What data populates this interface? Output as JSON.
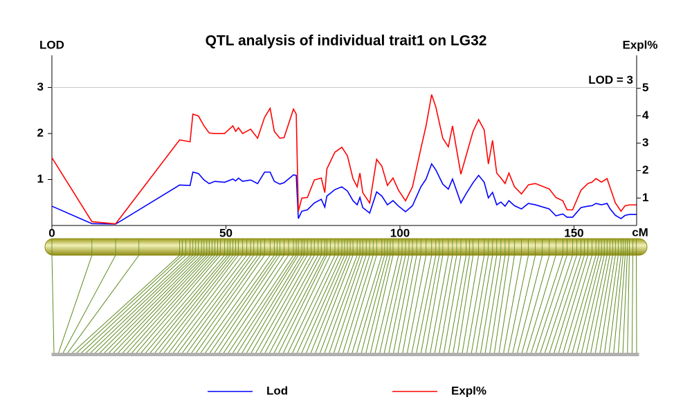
{
  "chart_data": {
    "type": "line",
    "title": "QTL analysis of individual trait1 on LG32",
    "y_label": "LOD",
    "y2_label": "Expl%",
    "x_label": "cM",
    "xlim": [
      0,
      168
    ],
    "xticks": [
      0,
      50,
      100,
      150
    ],
    "ylim": [
      0,
      3.7
    ],
    "yticks": [
      1,
      2,
      3
    ],
    "y2lim": [
      0,
      6.2
    ],
    "y2ticks": [
      1,
      2,
      3,
      4,
      5
    ],
    "threshold": {
      "value": 3,
      "label": "LOD = 3",
      "color": "#c8c8c8"
    },
    "x": [
      0,
      11.5,
      18.3,
      36.7,
      39.7,
      40.5,
      42.1,
      43.7,
      45.2,
      46.8,
      49.6,
      52.0,
      52.8,
      53.6,
      54.8,
      57.1,
      59.1,
      61.1,
      62.7,
      63.9,
      65.5,
      66.7,
      69.4,
      70.2,
      70.8,
      71.8,
      73.4,
      75.4,
      77.4,
      78.4,
      79.0,
      81.3,
      83.3,
      84.9,
      86.5,
      87.7,
      88.5,
      89.3,
      91.3,
      93.3,
      94.8,
      96.4,
      98.0,
      99.6,
      101.6,
      103.6,
      106.0,
      107.5,
      109.1,
      110.3,
      112.3,
      113.9,
      115.1,
      117.5,
      119.0,
      121.0,
      122.6,
      124.2,
      125.4,
      126.6,
      127.8,
      129.0,
      130.2,
      131.3,
      132.9,
      134.9,
      136.9,
      138.9,
      142.9,
      144.8,
      146.8,
      148.0,
      149.6,
      152.0,
      154.0,
      155.2,
      156.3,
      157.9,
      159.5,
      160.3,
      161.9,
      163.5,
      164.7,
      165.9,
      167.9
    ],
    "series": [
      {
        "name": "Lod",
        "color": "#0000ff",
        "values": [
          0.42,
          0.04,
          0.03,
          0.88,
          0.87,
          1.16,
          1.13,
          0.99,
          0.91,
          0.96,
          0.94,
          1.01,
          0.97,
          1.03,
          0.96,
          0.99,
          0.91,
          1.16,
          1.16,
          0.96,
          0.9,
          0.93,
          1.1,
          1.09,
          0.15,
          0.31,
          0.34,
          0.49,
          0.57,
          0.4,
          0.64,
          0.78,
          0.84,
          0.75,
          0.54,
          0.45,
          0.61,
          0.39,
          0.27,
          0.73,
          0.64,
          0.45,
          0.54,
          0.42,
          0.3,
          0.43,
          0.84,
          1.01,
          1.34,
          1.21,
          0.9,
          0.79,
          1.01,
          0.49,
          0.69,
          0.93,
          1.09,
          0.94,
          0.6,
          0.72,
          0.45,
          0.51,
          0.42,
          0.54,
          0.43,
          0.36,
          0.48,
          0.45,
          0.36,
          0.21,
          0.25,
          0.18,
          0.18,
          0.39,
          0.42,
          0.43,
          0.48,
          0.45,
          0.48,
          0.37,
          0.22,
          0.15,
          0.22,
          0.24,
          0.24
        ]
      },
      {
        "name": "Expl%",
        "color": "#ff0000",
        "axis": "y2",
        "values": [
          2.47,
          0.14,
          0.06,
          3.12,
          3.05,
          4.06,
          3.99,
          3.63,
          3.37,
          3.35,
          3.35,
          3.63,
          3.43,
          3.56,
          3.35,
          3.51,
          3.18,
          3.94,
          4.27,
          3.43,
          3.18,
          3.2,
          4.24,
          4.06,
          0.52,
          1.0,
          1.02,
          1.66,
          1.73,
          1.2,
          2.06,
          2.67,
          2.85,
          2.54,
          1.71,
          1.41,
          1.91,
          1.2,
          0.82,
          2.41,
          2.16,
          1.46,
          1.73,
          1.28,
          0.9,
          1.41,
          2.8,
          3.63,
          4.77,
          4.32,
          3.18,
          2.87,
          3.63,
          1.87,
          2.54,
          3.43,
          3.86,
          3.48,
          2.24,
          3.1,
          1.91,
          1.73,
          1.53,
          1.91,
          1.41,
          1.15,
          1.48,
          1.53,
          1.33,
          1.02,
          0.9,
          0.57,
          0.57,
          1.28,
          1.53,
          1.58,
          1.71,
          1.58,
          1.71,
          1.41,
          0.82,
          0.52,
          0.72,
          0.75,
          0.75
        ]
      }
    ],
    "marker_color": "#5f8a1e",
    "markers": [
      0,
      11.5,
      18.3,
      25,
      36.7,
      37.5,
      38.5,
      39.7,
      40.5,
      41.3,
      42.1,
      43,
      43.7,
      44.5,
      45.2,
      46,
      46.8,
      47.6,
      48.4,
      49.6,
      50.5,
      51.2,
      52,
      52.8,
      53.6,
      54.8,
      56,
      57.1,
      58,
      59.1,
      60,
      61.1,
      62.7,
      63.9,
      64.7,
      65.5,
      66.7,
      68,
      69.4,
      70.2,
      70.8,
      71.8,
      72.5,
      73.4,
      74.5,
      75.4,
      76.5,
      77.4,
      78.4,
      79,
      80,
      81.3,
      82.3,
      83.3,
      84.1,
      84.9,
      85.7,
      86.5,
      87.7,
      88.5,
      89.3,
      90.3,
      91.3,
      92.3,
      93.3,
      94.8,
      95.6,
      96.4,
      97.2,
      98,
      99.6,
      100.6,
      101.6,
      102.6,
      103.6,
      104.8,
      106,
      107.5,
      109.1,
      110.3,
      111.3,
      112.3,
      113.9,
      115.1,
      116.3,
      117.5,
      119,
      120,
      121,
      122.6,
      124.2,
      125.4,
      126.6,
      127.8,
      129,
      130.2,
      131.3,
      132.9,
      134.9,
      136.9,
      138.9,
      140.9,
      142.9,
      144.8,
      146.8,
      148,
      149.6,
      150.8,
      152,
      153,
      154,
      155.2,
      156.3,
      157.1,
      157.9,
      158.7,
      159.5,
      160.3,
      161.1,
      161.9,
      162.7,
      163.5,
      164.1,
      164.7,
      165.3,
      165.9,
      166.9,
      167.9
    ]
  }
}
